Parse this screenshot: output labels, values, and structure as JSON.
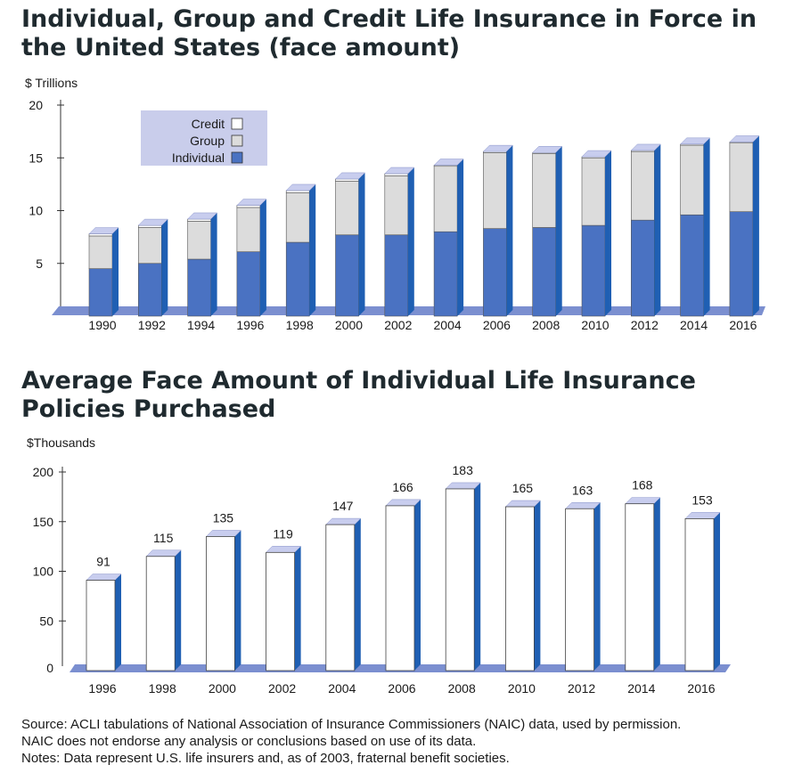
{
  "title1": "Individual, Group and Credit Life Insurance in Force in the United States (face amount)",
  "title2": "Average Face Amount of Individual Life Insurance Policies Purchased",
  "source_lines": [
    "Source: ACLI tabulations of National Association of Insurance Commissioners (NAIC) data, used by permission.",
    "NAIC does not endorse any analysis or conclusions based on use of its data.",
    "Notes: Data represent U.S. life insurers and, as of 2003, fraternal benefit societies."
  ],
  "colors": {
    "individual": "#4a72c2",
    "individual_side": "#1f5fb3",
    "group": "#dcdcdc",
    "credit": "#ffffff",
    "floor": "#7b8fd0",
    "legend_bg": "#c9cdeb",
    "bar_white": "#ffffff"
  },
  "chart_data": [
    {
      "type": "bar",
      "stacked": true,
      "title": "Individual, Group and Credit Life Insurance in Force in the United States (face amount)",
      "ylabel": "$ Trillions",
      "ylim": [
        0,
        20
      ],
      "yticks": [
        5,
        10,
        15,
        20
      ],
      "legend_position": "top-left",
      "categories": [
        "1990",
        "1992",
        "1994",
        "1996",
        "1998",
        "2000",
        "2002",
        "2004",
        "2006",
        "2008",
        "2010",
        "2012",
        "2014",
        "2016"
      ],
      "series": [
        {
          "name": "Individual",
          "values": [
            4.5,
            5.0,
            5.4,
            6.1,
            7.0,
            7.7,
            7.7,
            8.0,
            8.3,
            8.4,
            8.6,
            9.1,
            9.6,
            9.9
          ]
        },
        {
          "name": "Group",
          "values": [
            3.1,
            3.4,
            3.6,
            4.2,
            4.7,
            5.1,
            5.6,
            6.2,
            7.2,
            7.0,
            6.4,
            6.5,
            6.6,
            6.5
          ]
        },
        {
          "name": "Credit",
          "values": [
            0.2,
            0.2,
            0.2,
            0.2,
            0.2,
            0.2,
            0.2,
            0.1,
            0.1,
            0.1,
            0.1,
            0.1,
            0.1,
            0.1
          ]
        }
      ],
      "legend_order": [
        "Credit",
        "Group",
        "Individual"
      ]
    },
    {
      "type": "bar",
      "title": "Average Face Amount of Individual Life Insurance Policies Purchased",
      "ylabel": "$Thousands",
      "ylim": [
        0,
        200
      ],
      "yticks": [
        0,
        50,
        100,
        150,
        200
      ],
      "categories": [
        "1996",
        "1998",
        "2000",
        "2002",
        "2004",
        "2006",
        "2008",
        "2010",
        "2012",
        "2014",
        "2016"
      ],
      "values": [
        91,
        115,
        135,
        119,
        147,
        166,
        183,
        165,
        163,
        168,
        153
      ]
    }
  ]
}
